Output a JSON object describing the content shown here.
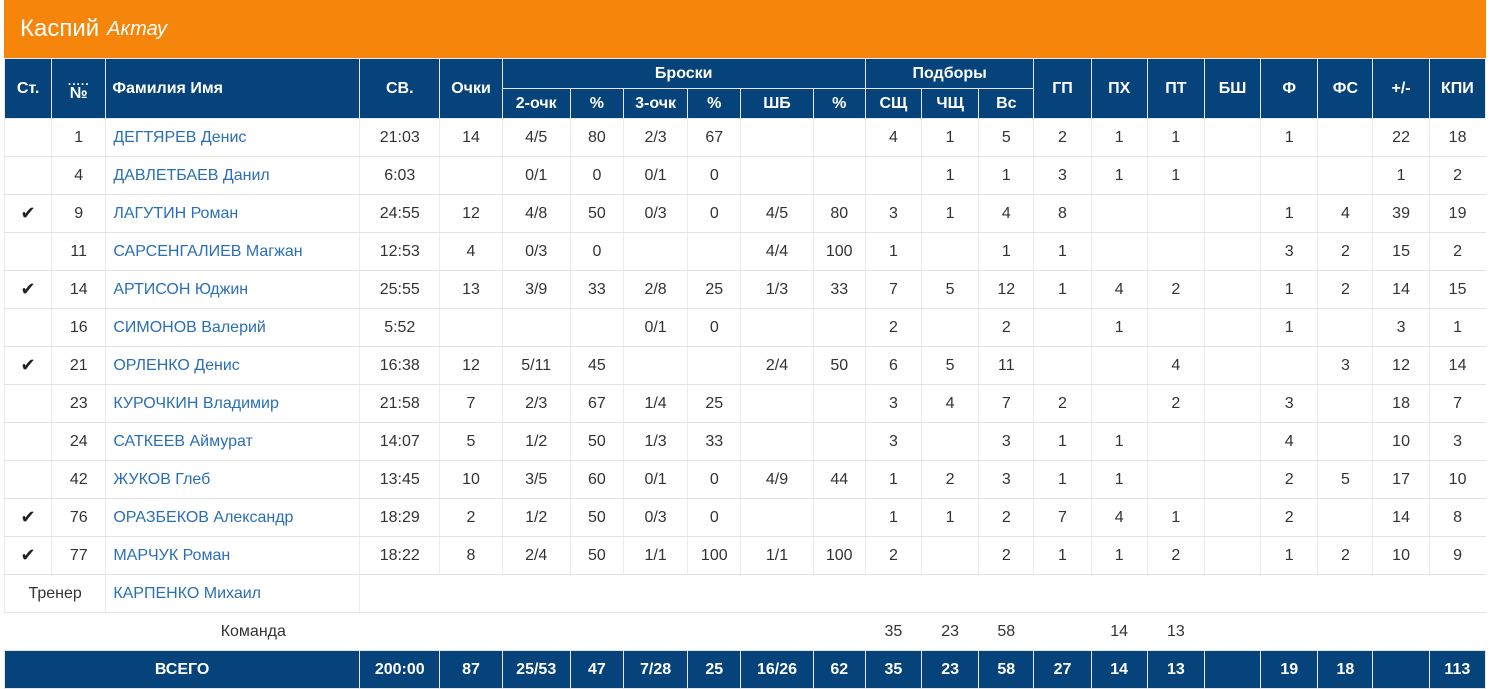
{
  "team": {
    "name": "Каспий",
    "city": "Актау"
  },
  "header": {
    "col_st": "Ст.",
    "col_no_dots": ".....",
    "col_no": "№",
    "col_name": "Фамилия Имя",
    "col_time": "СВ.",
    "col_points": "Очки",
    "group_shots": "Броски",
    "sub_2pt": "2-очк",
    "sub_2pct": "%",
    "sub_3pt": "3-очк",
    "sub_3pct": "%",
    "sub_ft": "ШБ",
    "sub_ftpct": "%",
    "group_reb": "Подборы",
    "sub_oreb": "СЩ",
    "sub_dreb": "ЧЩ",
    "sub_treb": "Вс",
    "col_ast": "ГП",
    "col_tov": "ПХ",
    "col_stl": "ПТ",
    "col_blk": "БШ",
    "col_pf": "Ф",
    "col_fd": "ФС",
    "col_pm": "+/-",
    "col_eff": "КПИ"
  },
  "players": [
    {
      "starter": false,
      "no": "1",
      "name": "ДЕГТЯРЕВ Денис",
      "time": "21:03",
      "pts": "14",
      "p2": "4/5",
      "p2pct": "80",
      "p3": "2/3",
      "p3pct": "67",
      "ft": "",
      "ftpct": "",
      "oreb": "4",
      "dreb": "1",
      "treb": "5",
      "ast": "2",
      "tov": "1",
      "stl": "1",
      "blk": "",
      "pf": "1",
      "fd": "",
      "pm": "22",
      "eff": "18"
    },
    {
      "starter": false,
      "no": "4",
      "name": "ДАВЛЕТБАЕВ Данил",
      "time": "6:03",
      "pts": "",
      "p2": "0/1",
      "p2pct": "0",
      "p3": "0/1",
      "p3pct": "0",
      "ft": "",
      "ftpct": "",
      "oreb": "",
      "dreb": "1",
      "treb": "1",
      "ast": "3",
      "tov": "1",
      "stl": "1",
      "blk": "",
      "pf": "",
      "fd": "",
      "pm": "1",
      "eff": "2"
    },
    {
      "starter": true,
      "no": "9",
      "name": "ЛАГУТИН Роман",
      "time": "24:55",
      "pts": "12",
      "p2": "4/8",
      "p2pct": "50",
      "p3": "0/3",
      "p3pct": "0",
      "ft": "4/5",
      "ftpct": "80",
      "oreb": "3",
      "dreb": "1",
      "treb": "4",
      "ast": "8",
      "tov": "",
      "stl": "",
      "blk": "",
      "pf": "1",
      "fd": "4",
      "pm": "39",
      "eff": "19"
    },
    {
      "starter": false,
      "no": "11",
      "name": "САРСЕНГАЛИЕВ Магжан",
      "time": "12:53",
      "pts": "4",
      "p2": "0/3",
      "p2pct": "0",
      "p3": "",
      "p3pct": "",
      "ft": "4/4",
      "ftpct": "100",
      "oreb": "1",
      "dreb": "",
      "treb": "1",
      "ast": "1",
      "tov": "",
      "stl": "",
      "blk": "",
      "pf": "3",
      "fd": "2",
      "pm": "15",
      "eff": "2"
    },
    {
      "starter": true,
      "no": "14",
      "name": "АРТИСОН Юджин",
      "time": "25:55",
      "pts": "13",
      "p2": "3/9",
      "p2pct": "33",
      "p3": "2/8",
      "p3pct": "25",
      "ft": "1/3",
      "ftpct": "33",
      "oreb": "7",
      "dreb": "5",
      "treb": "12",
      "ast": "1",
      "tov": "4",
      "stl": "2",
      "blk": "",
      "pf": "1",
      "fd": "2",
      "pm": "14",
      "eff": "15"
    },
    {
      "starter": false,
      "no": "16",
      "name": "СИМОНОВ Валерий",
      "time": "5:52",
      "pts": "",
      "p2": "",
      "p2pct": "",
      "p3": "0/1",
      "p3pct": "0",
      "ft": "",
      "ftpct": "",
      "oreb": "2",
      "dreb": "",
      "treb": "2",
      "ast": "",
      "tov": "1",
      "stl": "",
      "blk": "",
      "pf": "1",
      "fd": "",
      "pm": "3",
      "eff": "1"
    },
    {
      "starter": true,
      "no": "21",
      "name": "ОРЛЕНКО Денис",
      "time": "16:38",
      "pts": "12",
      "p2": "5/11",
      "p2pct": "45",
      "p3": "",
      "p3pct": "",
      "ft": "2/4",
      "ftpct": "50",
      "oreb": "6",
      "dreb": "5",
      "treb": "11",
      "ast": "",
      "tov": "",
      "stl": "4",
      "blk": "",
      "pf": "",
      "fd": "3",
      "pm": "12",
      "eff": "14"
    },
    {
      "starter": false,
      "no": "23",
      "name": "КУРОЧКИН Владимир",
      "time": "21:58",
      "pts": "7",
      "p2": "2/3",
      "p2pct": "67",
      "p3": "1/4",
      "p3pct": "25",
      "ft": "",
      "ftpct": "",
      "oreb": "3",
      "dreb": "4",
      "treb": "7",
      "ast": "2",
      "tov": "",
      "stl": "2",
      "blk": "",
      "pf": "3",
      "fd": "",
      "pm": "18",
      "eff": "7"
    },
    {
      "starter": false,
      "no": "24",
      "name": "САТКЕЕВ Аймурат",
      "time": "14:07",
      "pts": "5",
      "p2": "1/2",
      "p2pct": "50",
      "p3": "1/3",
      "p3pct": "33",
      "ft": "",
      "ftpct": "",
      "oreb": "3",
      "dreb": "",
      "treb": "3",
      "ast": "1",
      "tov": "1",
      "stl": "",
      "blk": "",
      "pf": "4",
      "fd": "",
      "pm": "10",
      "eff": "3"
    },
    {
      "starter": false,
      "no": "42",
      "name": "ЖУКОВ Глеб",
      "time": "13:45",
      "pts": "10",
      "p2": "3/5",
      "p2pct": "60",
      "p3": "0/1",
      "p3pct": "0",
      "ft": "4/9",
      "ftpct": "44",
      "oreb": "1",
      "dreb": "2",
      "treb": "3",
      "ast": "1",
      "tov": "1",
      "stl": "",
      "blk": "",
      "pf": "2",
      "fd": "5",
      "pm": "17",
      "eff": "10"
    },
    {
      "starter": true,
      "no": "76",
      "name": "ОРАЗБЕКОВ Александр",
      "time": "18:29",
      "pts": "2",
      "p2": "1/2",
      "p2pct": "50",
      "p3": "0/3",
      "p3pct": "0",
      "ft": "",
      "ftpct": "",
      "oreb": "1",
      "dreb": "1",
      "treb": "2",
      "ast": "7",
      "tov": "4",
      "stl": "1",
      "blk": "",
      "pf": "2",
      "fd": "",
      "pm": "14",
      "eff": "8"
    },
    {
      "starter": true,
      "no": "77",
      "name": "МАРЧУК Роман",
      "time": "18:22",
      "pts": "8",
      "p2": "2/4",
      "p2pct": "50",
      "p3": "1/1",
      "p3pct": "100",
      "ft": "1/1",
      "ftpct": "100",
      "oreb": "2",
      "dreb": "",
      "treb": "2",
      "ast": "1",
      "tov": "1",
      "stl": "2",
      "blk": "",
      "pf": "1",
      "fd": "2",
      "pm": "10",
      "eff": "9"
    }
  ],
  "coach": {
    "label": "Тренер",
    "name": "КАРПЕНКО Михаил"
  },
  "team_row": {
    "label": "Команда",
    "oreb": "35",
    "dreb": "23",
    "treb": "58",
    "tov": "14",
    "stl": "13"
  },
  "totals": {
    "label": "ВСЕГО",
    "time": "200:00",
    "pts": "87",
    "p2": "25/53",
    "p2pct": "47",
    "p3": "7/28",
    "p3pct": "25",
    "ft": "16/26",
    "ftpct": "62",
    "oreb": "35",
    "dreb": "23",
    "treb": "58",
    "ast": "27",
    "tov": "14",
    "stl": "13",
    "blk": "",
    "pf": "19",
    "fd": "18",
    "pm": "",
    "eff": "113"
  },
  "icons": {
    "starter": "checkmark-icon"
  },
  "colors": {
    "orange": "#f5860b",
    "navy": "#06437a",
    "link": "#2a6fb5"
  }
}
